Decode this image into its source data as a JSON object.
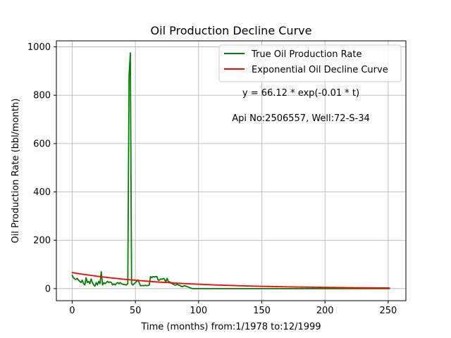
{
  "chart_data": {
    "type": "line",
    "title": "Oil Production Decline Curve",
    "xlabel": "Time (months) from:1/1978 to:12/1999",
    "ylabel": "Oil Production Rate (bbl/month)",
    "xlim": [
      -12.5,
      264
    ],
    "ylim": [
      -50,
      1025
    ],
    "xticks": [
      0,
      50,
      100,
      150,
      200,
      250
    ],
    "yticks": [
      0,
      200,
      400,
      600,
      800,
      1000
    ],
    "grid": true,
    "legend_position": "top-right",
    "annotations": [
      "y = 66.12 * exp(-0.01 * t)",
      "Api No:2506557, Well:72-S-34"
    ],
    "series": [
      {
        "name": "True Oil Production Rate",
        "color": "#008000",
        "kind": "line",
        "points": [
          [
            0,
            55
          ],
          [
            1,
            45
          ],
          [
            2,
            40
          ],
          [
            3,
            38
          ],
          [
            4,
            42
          ],
          [
            5,
            35
          ],
          [
            6,
            30
          ],
          [
            7,
            25
          ],
          [
            8,
            35
          ],
          [
            9,
            20
          ],
          [
            10,
            15
          ],
          [
            11,
            45
          ],
          [
            12,
            25
          ],
          [
            13,
            30
          ],
          [
            14,
            20
          ],
          [
            15,
            40
          ],
          [
            16,
            25
          ],
          [
            17,
            15
          ],
          [
            18,
            10
          ],
          [
            19,
            25
          ],
          [
            20,
            15
          ],
          [
            21,
            30
          ],
          [
            22,
            20
          ],
          [
            23,
            70
          ],
          [
            24,
            15
          ],
          [
            25,
            25
          ],
          [
            26,
            20
          ],
          [
            27,
            25
          ],
          [
            28,
            30
          ],
          [
            29,
            25
          ],
          [
            30,
            28
          ],
          [
            31,
            25
          ],
          [
            32,
            15
          ],
          [
            33,
            20
          ],
          [
            34,
            15
          ],
          [
            35,
            22
          ],
          [
            36,
            25
          ],
          [
            37,
            20
          ],
          [
            38,
            25
          ],
          [
            39,
            20
          ],
          [
            40,
            18
          ],
          [
            43,
            15
          ],
          [
            44,
            20
          ],
          [
            45,
            880
          ],
          [
            46,
            975
          ],
          [
            47,
            20
          ],
          [
            48,
            15
          ],
          [
            49,
            20
          ],
          [
            50,
            25
          ],
          [
            51,
            30
          ],
          [
            52,
            35
          ],
          [
            53,
            25
          ],
          [
            54,
            12
          ],
          [
            55,
            12
          ],
          [
            56,
            13
          ],
          [
            57,
            12
          ],
          [
            58,
            14
          ],
          [
            59,
            12
          ],
          [
            60,
            13
          ],
          [
            61,
            15
          ],
          [
            62,
            50
          ],
          [
            63,
            45
          ],
          [
            64,
            50
          ],
          [
            65,
            48
          ],
          [
            66,
            50
          ],
          [
            67,
            50
          ],
          [
            68,
            35
          ],
          [
            69,
            35
          ],
          [
            70,
            40
          ],
          [
            71,
            38
          ],
          [
            72,
            42
          ],
          [
            73,
            40
          ],
          [
            74,
            25
          ],
          [
            75,
            42
          ],
          [
            76,
            30
          ],
          [
            77,
            28
          ],
          [
            78,
            25
          ],
          [
            79,
            20
          ],
          [
            80,
            18
          ],
          [
            81,
            15
          ],
          [
            82,
            15
          ],
          [
            83,
            18
          ],
          [
            84,
            15
          ],
          [
            85,
            14
          ],
          [
            86,
            10
          ],
          [
            87,
            8
          ],
          [
            88,
            10
          ],
          [
            89,
            12
          ],
          [
            90,
            10
          ],
          [
            91,
            8
          ],
          [
            92,
            6
          ],
          [
            93,
            4
          ],
          [
            94,
            2
          ],
          [
            95,
            0
          ],
          [
            100,
            0
          ],
          [
            110,
            0
          ],
          [
            130,
            0
          ],
          [
            160,
            0
          ],
          [
            200,
            0
          ],
          [
            251,
            0
          ]
        ]
      },
      {
        "name": "Exponential Oil Decline Curve",
        "color": "#ff0000",
        "kind": "function",
        "a": 66.12,
        "b": -0.013,
        "x_range": [
          0,
          251
        ]
      }
    ]
  }
}
